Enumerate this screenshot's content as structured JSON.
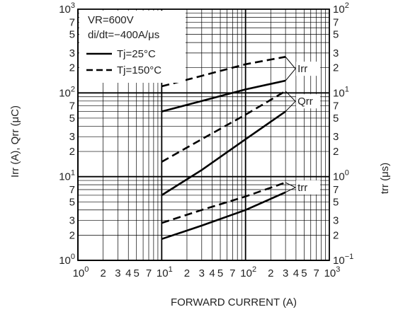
{
  "chart_data": {
    "type": "line",
    "scale": "log-log",
    "xlabel": "FORWARD CURRENT (A)",
    "ylabel_left": "Irr (A), Qrr (μC)",
    "ylabel_right": "trr (μs)",
    "xlim": [
      1,
      1000
    ],
    "ylim_left": [
      1,
      1000
    ],
    "ylim_right": [
      0.1,
      100
    ],
    "x_ticks": [
      {
        "v": 1,
        "b": "10",
        "e": "0"
      },
      {
        "v": 2,
        "t": "2"
      },
      {
        "v": 3,
        "t": "3"
      },
      {
        "v": 4,
        "t": "4"
      },
      {
        "v": 5,
        "t": "5"
      },
      {
        "v": 7,
        "t": "7"
      },
      {
        "v": 10,
        "b": "10",
        "e": "1"
      },
      {
        "v": 20,
        "t": "2"
      },
      {
        "v": 30,
        "t": "3"
      },
      {
        "v": 40,
        "t": "4"
      },
      {
        "v": 50,
        "t": "5"
      },
      {
        "v": 70,
        "t": "7"
      },
      {
        "v": 100,
        "b": "10",
        "e": "2"
      },
      {
        "v": 200,
        "t": "2"
      },
      {
        "v": 300,
        "t": "3"
      },
      {
        "v": 400,
        "t": "4"
      },
      {
        "v": 500,
        "t": "5"
      },
      {
        "v": 700,
        "t": "7"
      },
      {
        "v": 1000,
        "b": "10",
        "e": "3"
      }
    ],
    "y_left_ticks": [
      {
        "v": 1000,
        "b": "10",
        "e": "3"
      },
      {
        "v": 700,
        "t": "7"
      },
      {
        "v": 500,
        "t": "5"
      },
      {
        "v": 300,
        "t": "3"
      },
      {
        "v": 200,
        "t": "2"
      },
      {
        "v": 100,
        "b": "10",
        "e": "2"
      },
      {
        "v": 70,
        "t": "7"
      },
      {
        "v": 50,
        "t": "5"
      },
      {
        "v": 30,
        "t": "3"
      },
      {
        "v": 20,
        "t": "2"
      },
      {
        "v": 10,
        "b": "10",
        "e": "1"
      },
      {
        "v": 7,
        "t": "7"
      },
      {
        "v": 5,
        "t": "5"
      },
      {
        "v": 3,
        "t": "3"
      },
      {
        "v": 2,
        "t": "2"
      },
      {
        "v": 1,
        "b": "10",
        "e": "0"
      }
    ],
    "y_right_ticks": [
      {
        "v": 100,
        "b": "10",
        "e": "2"
      },
      {
        "v": 70,
        "t": "7"
      },
      {
        "v": 50,
        "t": "5"
      },
      {
        "v": 30,
        "t": "3"
      },
      {
        "v": 20,
        "t": "2"
      },
      {
        "v": 10,
        "b": "10",
        "e": "1"
      },
      {
        "v": 7,
        "t": "7"
      },
      {
        "v": 5,
        "t": "5"
      },
      {
        "v": 3,
        "t": "3"
      },
      {
        "v": 2,
        "t": "2"
      },
      {
        "v": 1,
        "b": "10",
        "e": "0"
      },
      {
        "v": 0.7,
        "t": "7"
      },
      {
        "v": 0.5,
        "t": "5"
      },
      {
        "v": 0.3,
        "t": "3"
      },
      {
        "v": 0.2,
        "t": "2"
      },
      {
        "v": 0.1,
        "b": "10",
        "e": "−1"
      }
    ],
    "conditions": [
      "VR=600V",
      "di/dt=−400A/μs"
    ],
    "legend": [
      {
        "label": "Tj=25°C",
        "style": "solid"
      },
      {
        "label": "Tj=150°C",
        "style": "dashed"
      }
    ],
    "series": [
      {
        "quantity": "Irr",
        "temp": "Tj=25°C",
        "style": "solid",
        "axis": "left",
        "x": [
          10,
          30,
          100,
          300
        ],
        "y": [
          60,
          80,
          110,
          140
        ]
      },
      {
        "quantity": "Irr",
        "temp": "Tj=150°C",
        "style": "dashed",
        "axis": "left",
        "x": [
          10,
          30,
          100,
          300
        ],
        "y": [
          120,
          160,
          220,
          270
        ]
      },
      {
        "quantity": "Qrr",
        "temp": "Tj=25°C",
        "style": "solid",
        "axis": "left",
        "x": [
          10,
          30,
          100,
          300
        ],
        "y": [
          6,
          12,
          28,
          60
        ]
      },
      {
        "quantity": "Qrr",
        "temp": "Tj=150°C",
        "style": "dashed",
        "axis": "left",
        "x": [
          10,
          30,
          100,
          300
        ],
        "y": [
          15,
          28,
          55,
          105
        ]
      },
      {
        "quantity": "trr",
        "temp": "Tj=25°C",
        "style": "solid",
        "axis": "right",
        "x": [
          10,
          30,
          100,
          300
        ],
        "y": [
          0.18,
          0.26,
          0.4,
          0.65
        ]
      },
      {
        "quantity": "trr",
        "temp": "Tj=150°C",
        "style": "dashed",
        "axis": "right",
        "x": [
          10,
          30,
          100,
          300
        ],
        "y": [
          0.28,
          0.4,
          0.58,
          0.85
        ]
      }
    ],
    "curve_labels": [
      {
        "text": "Irr",
        "target": "Irr"
      },
      {
        "text": "Qrr",
        "target": "Qrr"
      },
      {
        "text": "trr",
        "target": "trr"
      }
    ],
    "grid": true
  }
}
